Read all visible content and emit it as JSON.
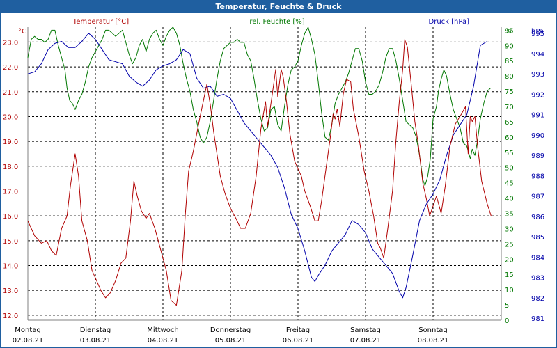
{
  "chart_data": {
    "type": "line",
    "title": "Temperatur, Feuchte & Druck",
    "colors": {
      "temperature": "#b00000",
      "humidity": "#007700",
      "pressure": "#0000aa",
      "title_bg": "#1f5fa0",
      "grid": "#000000"
    },
    "series_labels": {
      "temperature": "Temperatur [°C]",
      "humidity": "rel. Feuchte [%]",
      "pressure": "Druck [hPa]"
    },
    "axes": {
      "left": {
        "unit": "°C",
        "range": [
          11.8,
          23.6
        ],
        "ticks": [
          "23.0",
          "22.0",
          "21.0",
          "20.0",
          "19.0",
          "18.0",
          "17.0",
          "16.0",
          "15.0",
          "14.0",
          "13.0",
          "12.0"
        ],
        "tick_values": [
          23,
          22,
          21,
          20,
          19,
          18,
          17,
          16,
          15,
          14,
          13,
          12
        ]
      },
      "mid": {
        "unit": "%",
        "range": [
          0,
          96
        ],
        "ticks": [
          "95",
          "90",
          "85",
          "80",
          "75",
          "70",
          "65",
          "60",
          "55",
          "50",
          "45",
          "40",
          "35",
          "30",
          "25",
          "20",
          "15",
          "10",
          "5",
          "0"
        ],
        "tick_values": [
          95,
          90,
          85,
          80,
          75,
          70,
          65,
          60,
          55,
          50,
          45,
          40,
          35,
          30,
          25,
          20,
          15,
          10,
          5,
          0
        ]
      },
      "right": {
        "unit": "hPa",
        "range": [
          980.9,
          995.3
        ],
        "ticks": [
          "995",
          "994",
          "993",
          "992",
          "991",
          "990",
          "989",
          "988",
          "987",
          "986",
          "985",
          "984",
          "983",
          "982",
          "981"
        ],
        "tick_values": [
          995,
          994,
          993,
          992,
          991,
          990,
          989,
          988,
          987,
          986,
          985,
          984,
          983,
          982,
          981
        ]
      }
    },
    "days": [
      {
        "name": "Montag",
        "date": "02.08.21"
      },
      {
        "name": "Dienstag",
        "date": "03.08.21"
      },
      {
        "name": "Mittwoch",
        "date": "04.08.21"
      },
      {
        "name": "Donnerstag",
        "date": "05.08.21"
      },
      {
        "name": "Freitag",
        "date": "06.08.21"
      },
      {
        "name": "Samstag",
        "date": "07.08.21"
      },
      {
        "name": "Sonntag",
        "date": "08.08.21"
      }
    ],
    "x_range_days": [
      0,
      7
    ],
    "temperature": [
      [
        0.0,
        15.8
      ],
      [
        0.1,
        15.2
      ],
      [
        0.2,
        14.9
      ],
      [
        0.28,
        15.0
      ],
      [
        0.35,
        14.6
      ],
      [
        0.42,
        14.4
      ],
      [
        0.5,
        15.5
      ],
      [
        0.58,
        16.0
      ],
      [
        0.63,
        17.2
      ],
      [
        0.7,
        18.5
      ],
      [
        0.75,
        17.6
      ],
      [
        0.8,
        15.8
      ],
      [
        0.88,
        15.0
      ],
      [
        0.95,
        13.8
      ],
      [
        1.0,
        13.5
      ],
      [
        1.08,
        13.0
      ],
      [
        1.15,
        12.7
      ],
      [
        1.22,
        12.9
      ],
      [
        1.3,
        13.4
      ],
      [
        1.38,
        14.1
      ],
      [
        1.45,
        14.3
      ],
      [
        1.52,
        15.8
      ],
      [
        1.57,
        17.4
      ],
      [
        1.62,
        16.8
      ],
      [
        1.68,
        16.2
      ],
      [
        1.75,
        15.9
      ],
      [
        1.8,
        16.1
      ],
      [
        1.88,
        15.5
      ],
      [
        1.95,
        14.8
      ],
      [
        2.05,
        13.8
      ],
      [
        2.12,
        12.6
      ],
      [
        2.2,
        12.4
      ],
      [
        2.28,
        13.8
      ],
      [
        2.33,
        16.0
      ],
      [
        2.38,
        17.8
      ],
      [
        2.45,
        18.6
      ],
      [
        2.55,
        20.0
      ],
      [
        2.65,
        21.3
      ],
      [
        2.7,
        20.5
      ],
      [
        2.75,
        19.4
      ],
      [
        2.8,
        18.5
      ],
      [
        2.85,
        17.6
      ],
      [
        2.92,
        16.9
      ],
      [
        3.0,
        16.3
      ],
      [
        3.08,
        15.9
      ],
      [
        3.15,
        15.5
      ],
      [
        3.22,
        15.5
      ],
      [
        3.3,
        16.1
      ],
      [
        3.38,
        17.6
      ],
      [
        3.45,
        19.5
      ],
      [
        3.52,
        20.6
      ],
      [
        3.55,
        19.6
      ],
      [
        3.62,
        20.9
      ],
      [
        3.67,
        21.9
      ],
      [
        3.7,
        20.8
      ],
      [
        3.75,
        21.9
      ],
      [
        3.78,
        21.6
      ],
      [
        3.83,
        20.6
      ],
      [
        3.88,
        19.3
      ],
      [
        3.95,
        18.2
      ],
      [
        4.05,
        17.6
      ],
      [
        4.1,
        17.0
      ],
      [
        4.18,
        16.4
      ],
      [
        4.25,
        15.8
      ],
      [
        4.3,
        15.8
      ],
      [
        4.35,
        16.6
      ],
      [
        4.42,
        18.0
      ],
      [
        4.48,
        19.2
      ],
      [
        4.52,
        20.1
      ],
      [
        4.55,
        19.9
      ],
      [
        4.58,
        20.3
      ],
      [
        4.62,
        19.6
      ],
      [
        4.67,
        20.9
      ],
      [
        4.72,
        21.5
      ],
      [
        4.78,
        21.4
      ],
      [
        4.82,
        20.3
      ],
      [
        4.9,
        19.2
      ],
      [
        4.98,
        17.8
      ],
      [
        5.05,
        17.0
      ],
      [
        5.12,
        16.0
      ],
      [
        5.18,
        14.9
      ],
      [
        5.22,
        14.7
      ],
      [
        5.27,
        14.3
      ],
      [
        5.33,
        15.5
      ],
      [
        5.4,
        17.0
      ],
      [
        5.45,
        19.0
      ],
      [
        5.5,
        20.6
      ],
      [
        5.55,
        21.9
      ],
      [
        5.58,
        23.1
      ],
      [
        5.62,
        22.8
      ],
      [
        5.68,
        21.2
      ],
      [
        5.73,
        19.8
      ],
      [
        5.78,
        18.9
      ],
      [
        5.85,
        17.3
      ],
      [
        5.9,
        16.7
      ],
      [
        5.95,
        16.0
      ],
      [
        6.0,
        16.4
      ],
      [
        6.05,
        16.8
      ],
      [
        6.12,
        16.1
      ],
      [
        6.18,
        17.2
      ],
      [
        6.25,
        18.8
      ],
      [
        6.33,
        19.7
      ],
      [
        6.42,
        20.1
      ],
      [
        6.48,
        20.4
      ],
      [
        6.52,
        18.5
      ],
      [
        6.55,
        20.0
      ],
      [
        6.58,
        19.8
      ],
      [
        6.62,
        20.0
      ],
      [
        6.66,
        18.8
      ],
      [
        6.72,
        17.4
      ],
      [
        6.8,
        16.5
      ],
      [
        6.86,
        16.0
      ]
    ],
    "humidity": [
      [
        0.0,
        86
      ],
      [
        0.05,
        92
      ],
      [
        0.1,
        93
      ],
      [
        0.15,
        92
      ],
      [
        0.2,
        92
      ],
      [
        0.25,
        91
      ],
      [
        0.3,
        92
      ],
      [
        0.35,
        95
      ],
      [
        0.4,
        95
      ],
      [
        0.45,
        90
      ],
      [
        0.5,
        86
      ],
      [
        0.55,
        82
      ],
      [
        0.58,
        76
      ],
      [
        0.62,
        72
      ],
      [
        0.66,
        71
      ],
      [
        0.7,
        69
      ],
      [
        0.75,
        72
      ],
      [
        0.8,
        74
      ],
      [
        0.85,
        78
      ],
      [
        0.9,
        83
      ],
      [
        0.95,
        86
      ],
      [
        1.0,
        88
      ],
      [
        1.05,
        90
      ],
      [
        1.1,
        92
      ],
      [
        1.15,
        95
      ],
      [
        1.2,
        95
      ],
      [
        1.25,
        94
      ],
      [
        1.3,
        93
      ],
      [
        1.35,
        94
      ],
      [
        1.4,
        95
      ],
      [
        1.45,
        91
      ],
      [
        1.5,
        87
      ],
      [
        1.55,
        84
      ],
      [
        1.6,
        86
      ],
      [
        1.65,
        90
      ],
      [
        1.7,
        92
      ],
      [
        1.75,
        88
      ],
      [
        1.8,
        92
      ],
      [
        1.85,
        94
      ],
      [
        1.9,
        95
      ],
      [
        1.95,
        92
      ],
      [
        2.0,
        90
      ],
      [
        2.05,
        93
      ],
      [
        2.1,
        95
      ],
      [
        2.15,
        96
      ],
      [
        2.2,
        94
      ],
      [
        2.25,
        90
      ],
      [
        2.3,
        84
      ],
      [
        2.35,
        79
      ],
      [
        2.4,
        75
      ],
      [
        2.45,
        69
      ],
      [
        2.5,
        65
      ],
      [
        2.55,
        60
      ],
      [
        2.6,
        58
      ],
      [
        2.65,
        60
      ],
      [
        2.7,
        65
      ],
      [
        2.75,
        72
      ],
      [
        2.8,
        79
      ],
      [
        2.85,
        85
      ],
      [
        2.9,
        89
      ],
      [
        2.95,
        90
      ],
      [
        3.0,
        91
      ],
      [
        3.05,
        91
      ],
      [
        3.1,
        92
      ],
      [
        3.15,
        91
      ],
      [
        3.2,
        91
      ],
      [
        3.25,
        87
      ],
      [
        3.3,
        85
      ],
      [
        3.35,
        79
      ],
      [
        3.4,
        72
      ],
      [
        3.45,
        66
      ],
      [
        3.5,
        62
      ],
      [
        3.55,
        63
      ],
      [
        3.6,
        69
      ],
      [
        3.65,
        70
      ],
      [
        3.7,
        64
      ],
      [
        3.75,
        62
      ],
      [
        3.8,
        70
      ],
      [
        3.85,
        77
      ],
      [
        3.9,
        82
      ],
      [
        3.95,
        83
      ],
      [
        4.0,
        85
      ],
      [
        4.05,
        90
      ],
      [
        4.1,
        94
      ],
      [
        4.15,
        96
      ],
      [
        4.2,
        92
      ],
      [
        4.25,
        87
      ],
      [
        4.3,
        78
      ],
      [
        4.35,
        68
      ],
      [
        4.4,
        60
      ],
      [
        4.45,
        59
      ],
      [
        4.5,
        64
      ],
      [
        4.55,
        71
      ],
      [
        4.6,
        74
      ],
      [
        4.65,
        76
      ],
      [
        4.7,
        78
      ],
      [
        4.75,
        81
      ],
      [
        4.8,
        85
      ],
      [
        4.85,
        89
      ],
      [
        4.9,
        89
      ],
      [
        4.95,
        85
      ],
      [
        5.0,
        78
      ],
      [
        5.05,
        74
      ],
      [
        5.1,
        74
      ],
      [
        5.15,
        75
      ],
      [
        5.2,
        77
      ],
      [
        5.25,
        81
      ],
      [
        5.3,
        86
      ],
      [
        5.35,
        89
      ],
      [
        5.4,
        89
      ],
      [
        5.45,
        85
      ],
      [
        5.5,
        79
      ],
      [
        5.55,
        72
      ],
      [
        5.6,
        65
      ],
      [
        5.65,
        64
      ],
      [
        5.7,
        63
      ],
      [
        5.75,
        60
      ],
      [
        5.8,
        54
      ],
      [
        5.85,
        46
      ],
      [
        5.88,
        44
      ],
      [
        5.92,
        47
      ],
      [
        5.96,
        53
      ],
      [
        6.0,
        66
      ],
      [
        6.05,
        70
      ],
      [
        6.08,
        75
      ],
      [
        6.12,
        79
      ],
      [
        6.16,
        82
      ],
      [
        6.2,
        80
      ],
      [
        6.25,
        74
      ],
      [
        6.3,
        69
      ],
      [
        6.35,
        66
      ],
      [
        6.4,
        63
      ],
      [
        6.45,
        58
      ],
      [
        6.5,
        57
      ],
      [
        6.55,
        53
      ],
      [
        6.58,
        56
      ],
      [
        6.62,
        54
      ],
      [
        6.66,
        59
      ],
      [
        6.7,
        66
      ],
      [
        6.75,
        71
      ],
      [
        6.8,
        75
      ],
      [
        6.85,
        76
      ]
    ],
    "pressure": [
      [
        0.0,
        993.0
      ],
      [
        0.1,
        993.1
      ],
      [
        0.2,
        993.5
      ],
      [
        0.3,
        994.2
      ],
      [
        0.4,
        994.5
      ],
      [
        0.5,
        994.6
      ],
      [
        0.6,
        994.3
      ],
      [
        0.7,
        994.3
      ],
      [
        0.8,
        994.6
      ],
      [
        0.9,
        995.0
      ],
      [
        1.0,
        994.7
      ],
      [
        1.1,
        994.2
      ],
      [
        1.2,
        993.7
      ],
      [
        1.3,
        993.6
      ],
      [
        1.4,
        993.5
      ],
      [
        1.5,
        992.9
      ],
      [
        1.6,
        992.6
      ],
      [
        1.7,
        992.4
      ],
      [
        1.8,
        992.7
      ],
      [
        1.9,
        993.2
      ],
      [
        2.0,
        993.4
      ],
      [
        2.1,
        993.5
      ],
      [
        2.2,
        993.7
      ],
      [
        2.3,
        994.2
      ],
      [
        2.4,
        994.0
      ],
      [
        2.5,
        992.8
      ],
      [
        2.6,
        992.3
      ],
      [
        2.7,
        992.4
      ],
      [
        2.8,
        991.9
      ],
      [
        2.9,
        992.0
      ],
      [
        3.0,
        991.8
      ],
      [
        3.1,
        991.2
      ],
      [
        3.2,
        990.6
      ],
      [
        3.3,
        990.2
      ],
      [
        3.4,
        989.8
      ],
      [
        3.5,
        989.4
      ],
      [
        3.6,
        989.0
      ],
      [
        3.7,
        988.4
      ],
      [
        3.8,
        987.4
      ],
      [
        3.9,
        986.1
      ],
      [
        4.0,
        985.4
      ],
      [
        4.1,
        984.3
      ],
      [
        4.2,
        983.0
      ],
      [
        4.25,
        982.8
      ],
      [
        4.3,
        983.1
      ],
      [
        4.4,
        983.6
      ],
      [
        4.5,
        984.3
      ],
      [
        4.6,
        984.7
      ],
      [
        4.7,
        985.1
      ],
      [
        4.8,
        985.8
      ],
      [
        4.9,
        985.6
      ],
      [
        5.0,
        985.2
      ],
      [
        5.1,
        984.4
      ],
      [
        5.2,
        984.0
      ],
      [
        5.3,
        983.6
      ],
      [
        5.4,
        983.2
      ],
      [
        5.5,
        982.3
      ],
      [
        5.55,
        982.0
      ],
      [
        5.6,
        982.5
      ],
      [
        5.7,
        984.1
      ],
      [
        5.8,
        985.8
      ],
      [
        5.9,
        986.6
      ],
      [
        6.0,
        987.1
      ],
      [
        6.1,
        987.8
      ],
      [
        6.2,
        989.0
      ],
      [
        6.3,
        990.0
      ],
      [
        6.4,
        990.5
      ],
      [
        6.5,
        991.0
      ],
      [
        6.6,
        992.4
      ],
      [
        6.7,
        994.4
      ],
      [
        6.8,
        994.6
      ]
    ]
  }
}
